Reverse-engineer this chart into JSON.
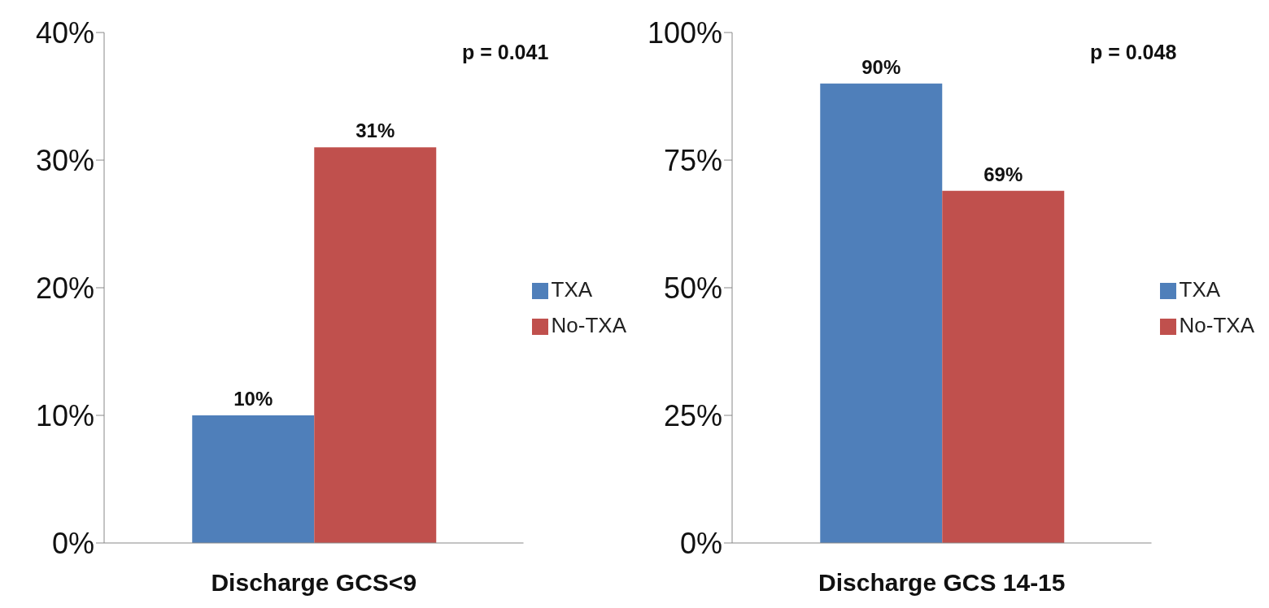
{
  "chart_data": [
    {
      "type": "bar",
      "categories": [
        "Discharge GCS<9"
      ],
      "series": [
        {
          "name": "TXA",
          "color": "#4f7fba",
          "values": [
            10
          ],
          "value_labels": [
            "10%"
          ]
        },
        {
          "name": "No-TXA",
          "color": "#c0504d",
          "values": [
            31
          ],
          "value_labels": [
            "31%"
          ]
        }
      ],
      "ylim": [
        0,
        40
      ],
      "yticks": [
        {
          "value": 0,
          "label": "0%"
        },
        {
          "value": 10,
          "label": "10%"
        },
        {
          "value": 20,
          "label": "20%"
        },
        {
          "value": 30,
          "label": "30%"
        },
        {
          "value": 40,
          "label": "40%"
        }
      ],
      "grid": false,
      "legend": "right",
      "annotations": [
        "p = 0.041"
      ]
    },
    {
      "type": "bar",
      "categories": [
        "Discharge GCS 14-15"
      ],
      "series": [
        {
          "name": "TXA",
          "color": "#4f7fba",
          "values": [
            90
          ],
          "value_labels": [
            "90%"
          ]
        },
        {
          "name": "No-TXA",
          "color": "#c0504d",
          "values": [
            69
          ],
          "value_labels": [
            "69%"
          ]
        }
      ],
      "ylim": [
        0,
        100
      ],
      "yticks": [
        {
          "value": 0,
          "label": "0%"
        },
        {
          "value": 25,
          "label": "25%"
        },
        {
          "value": 50,
          "label": "50%"
        },
        {
          "value": 75,
          "label": "75%"
        },
        {
          "value": 100,
          "label": "100%"
        }
      ],
      "grid": false,
      "legend": "right",
      "annotations": [
        "p = 0.048"
      ]
    }
  ]
}
